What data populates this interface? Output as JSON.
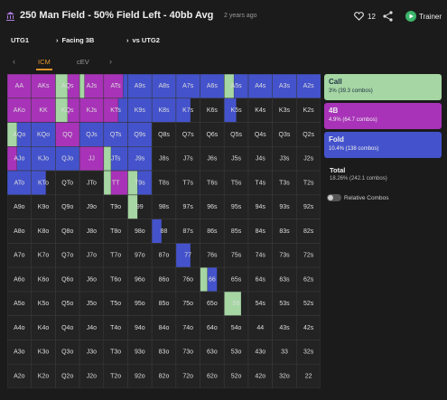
{
  "header": {
    "title": "250 Man Field - 50% Field Left - 40bb Avg",
    "time": "2 years ago",
    "likes": "12",
    "trainer": "Trainer"
  },
  "nav": [
    "UTG1",
    "Facing 3B",
    "vs UTG2"
  ],
  "tabs": [
    "ICM",
    "cEV"
  ],
  "grid": {
    "rows": [
      [
        {
          "hand": "AA",
          "fourbet": 100
        },
        {
          "hand": "AKs",
          "fourbet": 100
        },
        {
          "hand": "AQs",
          "call": 50,
          "fourbet": 50
        },
        {
          "hand": "AJs",
          "call": 20,
          "fourbet": 80
        },
        {
          "hand": "ATs",
          "fourbet": 80,
          "fold": 20
        },
        {
          "hand": "A9s",
          "fold": 100
        },
        {
          "hand": "A8s",
          "fold": 100
        },
        {
          "hand": "A7s",
          "fold": 100
        },
        {
          "hand": "A6s",
          "fold": 100
        },
        {
          "hand": "A5s",
          "call": 40,
          "fold": 60
        },
        {
          "hand": "A4s",
          "fold": 100
        },
        {
          "hand": "A3s",
          "fold": 100
        },
        {
          "hand": "A2s",
          "fold": 100
        }
      ],
      [
        {
          "hand": "AKo",
          "fourbet": 100
        },
        {
          "hand": "KK",
          "fourbet": 100
        },
        {
          "hand": "KQs",
          "call": 50,
          "fourbet": 50
        },
        {
          "hand": "KJs",
          "fourbet": 100
        },
        {
          "hand": "KTs",
          "fourbet": 60,
          "fold": 40
        },
        {
          "hand": "K9s",
          "fold": 100
        },
        {
          "hand": "K8s",
          "fold": 100
        },
        {
          "hand": "K7s",
          "fold": 60
        },
        "K6s",
        {
          "hand": "K5s",
          "fold": 50
        },
        "K4s",
        "K3s",
        "K2s"
      ],
      [
        {
          "hand": "AQo",
          "call": 40,
          "fold": 60
        },
        {
          "hand": "KQo",
          "fold": 100
        },
        {
          "hand": "QQ",
          "fourbet": 100
        },
        {
          "hand": "QJs",
          "fold": 100
        },
        {
          "hand": "QTs",
          "fold": 100
        },
        {
          "hand": "Q9s",
          "fold": 100
        },
        "Q8s",
        "Q7s",
        "Q6s",
        "Q5s",
        "Q4s",
        "Q3s",
        "Q2s"
      ],
      [
        {
          "hand": "AJo",
          "fourbet": 40,
          "fold": 60
        },
        {
          "hand": "KJo",
          "fold": 100
        },
        {
          "hand": "QJo",
          "fold": 100
        },
        {
          "hand": "JJ",
          "fourbet": 100
        },
        {
          "hand": "JTs",
          "call": 30,
          "fold": 70
        },
        {
          "hand": "J9s",
          "fold": 100
        },
        "J8s",
        "J7s",
        "J6s",
        "J5s",
        "J4s",
        "J3s",
        "J2s"
      ],
      [
        {
          "hand": "ATo",
          "fold": 100
        },
        {
          "hand": "KTo",
          "fold": 60
        },
        "QTo",
        "JTo",
        {
          "hand": "TT",
          "call": 30,
          "fourbet": 70
        },
        {
          "hand": "T9s",
          "call": 40,
          "fold": 60
        },
        "T8s",
        "T7s",
        "T6s",
        "T5s",
        "T4s",
        "T3s",
        "T2s"
      ],
      [
        "A9o",
        "K9o",
        "Q9o",
        "J9o",
        "T9o",
        {
          "hand": "99",
          "call": 40
        },
        "98s",
        "97s",
        "96s",
        "95s",
        "94s",
        "93s",
        "92s"
      ],
      [
        "A8o",
        "K8o",
        "Q8o",
        "J8o",
        "T8o",
        "98o",
        {
          "hand": "88",
          "fold": 40
        },
        "87s",
        "86s",
        "85s",
        "84s",
        "83s",
        "82s"
      ],
      [
        "A7o",
        "K7o",
        "Q7o",
        "J7o",
        "T7o",
        "97o",
        "87o",
        {
          "hand": "77",
          "fold": 60
        },
        "76s",
        "75s",
        "74s",
        "73s",
        "72s"
      ],
      [
        "A6o",
        "K6o",
        "Q6o",
        "J6o",
        "T6o",
        "96o",
        "86o",
        "76o",
        {
          "hand": "66",
          "call": 30,
          "fold": 40
        },
        "65s",
        "64s",
        "63s",
        "62s"
      ],
      [
        "A5o",
        "K5o",
        "Q5o",
        "J5o",
        "T5o",
        "95o",
        "85o",
        "75o",
        "65o",
        {
          "hand": "55",
          "call": 70
        },
        "54s",
        "53s",
        "52s"
      ],
      [
        "A4o",
        "K4o",
        "Q4o",
        "J4o",
        "T4o",
        "94o",
        "84o",
        "74o",
        "64o",
        "54o",
        "44",
        "43s",
        "42s"
      ],
      [
        "A3o",
        "K3o",
        "Q3o",
        "J3o",
        "T3o",
        "93o",
        "83o",
        "73o",
        "63o",
        "53o",
        "43o",
        "33",
        "32s"
      ],
      [
        "A2o",
        "K2o",
        "Q2o",
        "J2o",
        "T2o",
        "92o",
        "82o",
        "72o",
        "62o",
        "52o",
        "42o",
        "32o",
        "22"
      ]
    ]
  },
  "legend": {
    "call": {
      "name": "Call",
      "detail": "3% (39.3 combos)"
    },
    "fourbet": {
      "name": "4B",
      "detail": "4.9% (64.7 combos)"
    },
    "fold": {
      "name": "Fold",
      "detail": "10.4% (138 combos)"
    },
    "total": {
      "name": "Total",
      "detail": "18.26% (242.1 combos)"
    },
    "toggle": "Relative Combos"
  }
}
